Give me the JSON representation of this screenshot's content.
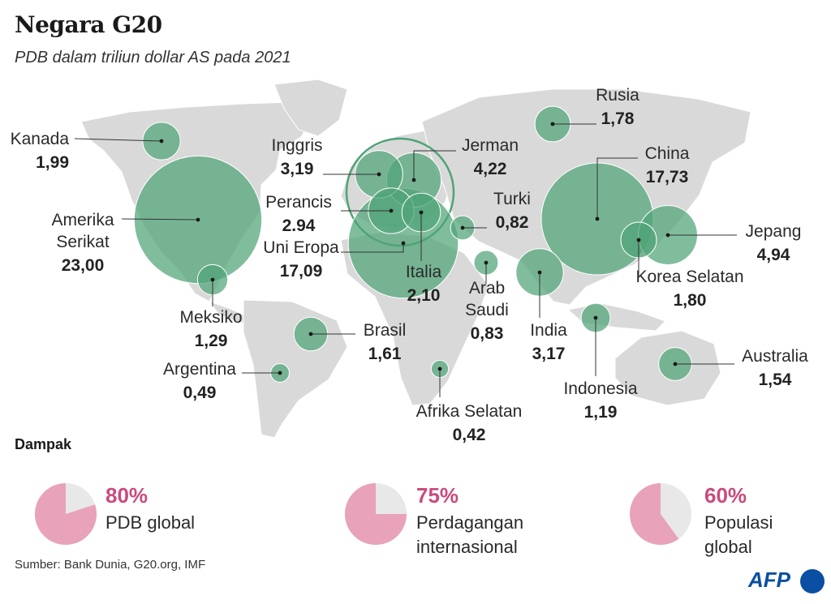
{
  "title": "Negara G20",
  "subtitle": "PDB dalam triliun dollar AS pada 2021",
  "colors": {
    "bubble": "#4fa377",
    "land": "#d9d9d9",
    "accent": "#c94b7e",
    "pie": "#e8a2b9",
    "pie_rest": "#e8e8e8",
    "afp": "#0a4fa3"
  },
  "chart_data": {
    "type": "bubble-map",
    "title": "Negara G20",
    "subtitle": "PDB dalam triliun dollar AS pada 2021",
    "unit": "triliun dollar AS",
    "series": [
      {
        "id": "kanada",
        "name": [
          "Kanada"
        ],
        "value": 1.99,
        "label": "1,99"
      },
      {
        "id": "amerika-serikat",
        "name": [
          "Amerika",
          "Serikat"
        ],
        "value": 23.0,
        "label": "23,00"
      },
      {
        "id": "meksiko",
        "name": [
          "Meksiko"
        ],
        "value": 1.29,
        "label": "1,29"
      },
      {
        "id": "brasil",
        "name": [
          "Brasil"
        ],
        "value": 1.61,
        "label": "1,61"
      },
      {
        "id": "argentina",
        "name": [
          "Argentina"
        ],
        "value": 0.49,
        "label": "0,49"
      },
      {
        "id": "inggris",
        "name": [
          "Inggris"
        ],
        "value": 3.19,
        "label": "3,19"
      },
      {
        "id": "perancis",
        "name": [
          "Perancis"
        ],
        "value": 2.94,
        "label": "2.94"
      },
      {
        "id": "jerman",
        "name": [
          "Jerman"
        ],
        "value": 4.22,
        "label": "4,22"
      },
      {
        "id": "italia",
        "name": [
          "Italia"
        ],
        "value": 2.1,
        "label": "2,10"
      },
      {
        "id": "uni-eropa",
        "name": [
          "Uni Eropa"
        ],
        "value": 17.09,
        "label": "17,09"
      },
      {
        "id": "turki",
        "name": [
          "Turki"
        ],
        "value": 0.82,
        "label": "0,82"
      },
      {
        "id": "arab-saudi",
        "name": [
          "Arab",
          "Saudi"
        ],
        "value": 0.83,
        "label": "0,83"
      },
      {
        "id": "afrika-selatan",
        "name": [
          "Afrika Selatan"
        ],
        "value": 0.42,
        "label": "0,42"
      },
      {
        "id": "rusia",
        "name": [
          "Rusia"
        ],
        "value": 1.78,
        "label": "1,78"
      },
      {
        "id": "india",
        "name": [
          "India"
        ],
        "value": 3.17,
        "label": "3,17"
      },
      {
        "id": "china",
        "name": [
          "China"
        ],
        "value": 17.73,
        "label": "17,73"
      },
      {
        "id": "jepang",
        "name": [
          "Jepang"
        ],
        "value": 4.94,
        "label": "4,94"
      },
      {
        "id": "korea-selatan",
        "name": [
          "Korea Selatan"
        ],
        "value": 1.8,
        "label": "1,80"
      },
      {
        "id": "indonesia",
        "name": [
          "Indonesia"
        ],
        "value": 1.19,
        "label": "1,19"
      },
      {
        "id": "australia",
        "name": [
          "Australia"
        ],
        "value": 1.54,
        "label": "1,54"
      }
    ],
    "impact": {
      "title": "Dampak",
      "items": [
        {
          "id": "pdb",
          "percent": 80,
          "percent_label": "80%",
          "label_lines": [
            "PDB global"
          ]
        },
        {
          "id": "perdagangan",
          "percent": 75,
          "percent_label": "75%",
          "label_lines": [
            "Perdagangan",
            "internasional"
          ]
        },
        {
          "id": "populasi",
          "percent": 60,
          "percent_label": "60%",
          "label_lines": [
            "Populasi",
            "global"
          ]
        }
      ]
    }
  },
  "impact_title": "Dampak",
  "source": "Sumber: Bank Dunia, G20.org, IMF",
  "logo": "AFP"
}
